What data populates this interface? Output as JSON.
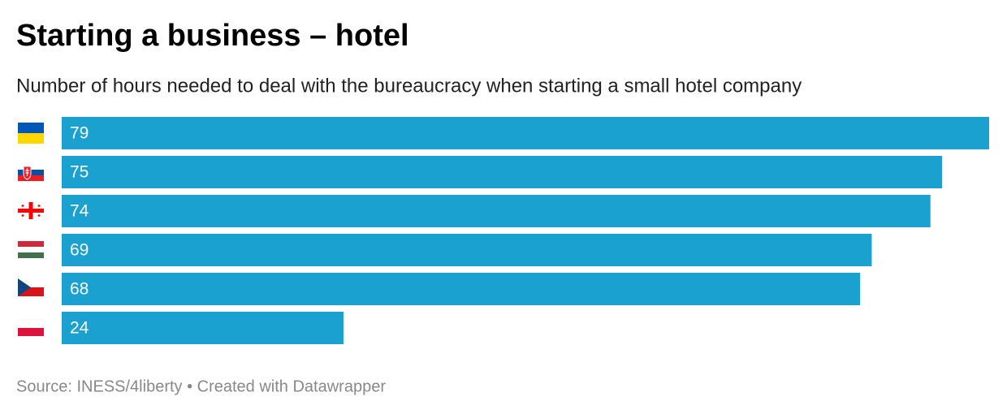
{
  "chart_data": {
    "type": "hbar",
    "title": "Starting a business – hotel",
    "subtitle": "Number of hours needed to deal with the bureaucracy when starting a small hotel company",
    "categories": [
      null,
      null,
      null,
      null,
      null,
      null
    ],
    "values": [
      79,
      75,
      74,
      69,
      68,
      24
    ],
    "color": "#1ba1cf",
    "xlim": [
      0,
      79
    ],
    "footer": "Source: INESS/4liberty • Created with Datawrapper"
  }
}
